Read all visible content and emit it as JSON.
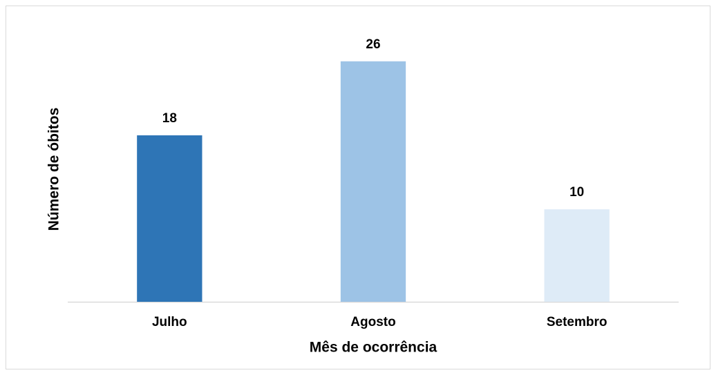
{
  "chart_data": {
    "type": "bar",
    "categories": [
      "Julho",
      "Agosto",
      "Setembro"
    ],
    "values": [
      18,
      26,
      10
    ],
    "colors": [
      "#2e75b6",
      "#9dc3e6",
      "#deebf7"
    ],
    "ylim": [
      0,
      28
    ],
    "xlabel": "Mês de ocorrência",
    "ylabel": "Número de óbitos"
  }
}
